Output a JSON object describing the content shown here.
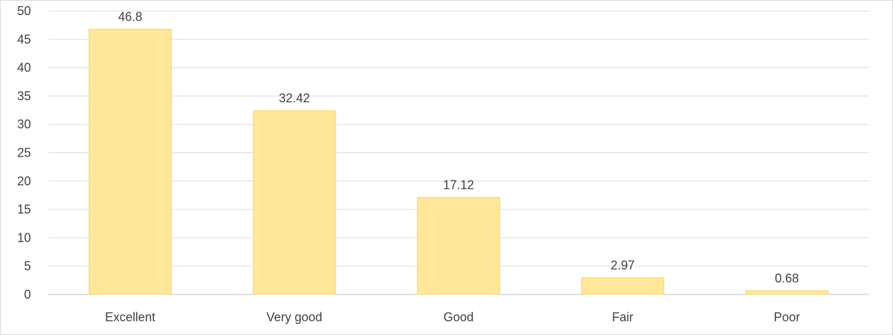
{
  "chart_data": {
    "type": "bar",
    "title": "",
    "xlabel": "",
    "ylabel": "",
    "categories": [
      "Excellent",
      "Very good",
      "Good",
      "Fair",
      "Poor"
    ],
    "values": [
      46.8,
      32.42,
      17.12,
      2.97,
      0.68
    ],
    "data_labels": [
      "46.8",
      "32.42",
      "17.12",
      "2.97",
      "0.68"
    ],
    "ylim": [
      0,
      50
    ],
    "y_ticks": [
      0,
      5,
      10,
      15,
      20,
      25,
      30,
      35,
      40,
      45,
      50
    ],
    "y_tick_labels": [
      "0",
      "5",
      "10",
      "15",
      "20",
      "25",
      "30",
      "35",
      "40",
      "45",
      "50"
    ],
    "grid": true,
    "legend": "none",
    "colors": {
      "bar_fill": "#ffe699",
      "bar_edge": "#f5d77c",
      "gridline": "#d9d9d9",
      "text": "#404040",
      "border": "#d9d9d9"
    }
  }
}
